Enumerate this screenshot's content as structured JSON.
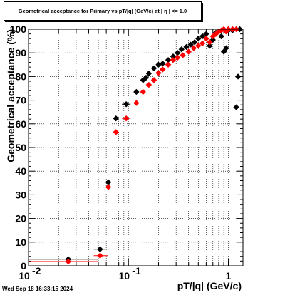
{
  "footer": {
    "timestamp": "Wed Sep 18 16:33:15 2024"
  },
  "chart_data": {
    "type": "scatter",
    "title": "Geometrical acceptance for Primary vs pT/|q| (GeV/c) at |  η | <= 1.0",
    "xlabel": "pT/|q| (GeV/c)",
    "ylabel": "Geometrical acceptance (%)",
    "x_scale": "log",
    "xlim": [
      0.01,
      1.4
    ],
    "ylim": [
      0,
      100
    ],
    "grid": true,
    "x_major_ticks": [
      0.01,
      0.1,
      1
    ],
    "x_tick_labels": {
      "base": "10",
      "exps": [
        "-2",
        "-1"
      ],
      "last": "1"
    },
    "y_ticks": [
      0,
      10,
      20,
      30,
      40,
      50,
      60,
      70,
      80,
      90,
      100
    ],
    "y_tick_labels": [
      "0",
      "10",
      "20",
      "30",
      "40",
      "50",
      "60",
      "70",
      "80",
      "90",
      "100"
    ],
    "series": [
      {
        "color": "#000000",
        "marker": "diamond",
        "points": [
          {
            "x": 0.025,
            "y": 2.8,
            "xlo": 0.0,
            "xhi": 0.05
          },
          {
            "x": 0.052,
            "y": 7.0,
            "xlo": 0.045,
            "xhi": 0.058
          },
          {
            "x": 0.063,
            "y": 35.3
          },
          {
            "x": 0.075,
            "y": 62.3
          },
          {
            "x": 0.095,
            "y": 68.3,
            "xlo": 0.086,
            "xhi": 0.105
          },
          {
            "x": 0.12,
            "y": 73.5
          },
          {
            "x": 0.14,
            "y": 78.5
          },
          {
            "x": 0.15,
            "y": 79.5
          },
          {
            "x": 0.16,
            "y": 81.3
          },
          {
            "x": 0.18,
            "y": 83.5
          },
          {
            "x": 0.2,
            "y": 85.0
          },
          {
            "x": 0.22,
            "y": 85.5
          },
          {
            "x": 0.25,
            "y": 87.0
          },
          {
            "x": 0.28,
            "y": 88.5
          },
          {
            "x": 0.31,
            "y": 90.0
          },
          {
            "x": 0.34,
            "y": 91.5
          },
          {
            "x": 0.38,
            "y": 92.5
          },
          {
            "x": 0.42,
            "y": 93.5
          },
          {
            "x": 0.46,
            "y": 94.5
          },
          {
            "x": 0.5,
            "y": 96.0
          },
          {
            "x": 0.55,
            "y": 97.0
          },
          {
            "x": 0.6,
            "y": 98.0
          },
          {
            "x": 0.65,
            "y": 93.0
          },
          {
            "x": 0.7,
            "y": 95.5
          },
          {
            "x": 0.75,
            "y": 98.5
          },
          {
            "x": 0.8,
            "y": 99.0
          },
          {
            "x": 0.85,
            "y": 97.0
          },
          {
            "x": 0.9,
            "y": 90.5
          },
          {
            "x": 0.95,
            "y": 92.0
          },
          {
            "x": 1.0,
            "y": 99.5
          },
          {
            "x": 1.1,
            "y": 99.5
          },
          {
            "x": 1.2,
            "y": 67.0
          },
          {
            "x": 1.25,
            "y": 80.0
          },
          {
            "x": 1.3,
            "y": 100.0
          }
        ]
      },
      {
        "color": "#ff0000",
        "marker": "diamond",
        "points": [
          {
            "x": 0.025,
            "y": 1.8,
            "xlo": 0.0,
            "xhi": 0.05
          },
          {
            "x": 0.052,
            "y": 4.3,
            "xlo": 0.045,
            "xhi": 0.062
          },
          {
            "x": 0.063,
            "y": 33.3
          },
          {
            "x": 0.075,
            "y": 56.5
          },
          {
            "x": 0.095,
            "y": 62.3,
            "xlo": 0.086,
            "xhi": 0.105
          },
          {
            "x": 0.12,
            "y": 68.8
          },
          {
            "x": 0.14,
            "y": 73.5
          },
          {
            "x": 0.16,
            "y": 76.5
          },
          {
            "x": 0.18,
            "y": 78.5
          },
          {
            "x": 0.2,
            "y": 81.5
          },
          {
            "x": 0.22,
            "y": 83.0
          },
          {
            "x": 0.25,
            "y": 85.0
          },
          {
            "x": 0.28,
            "y": 87.0
          },
          {
            "x": 0.31,
            "y": 88.0
          },
          {
            "x": 0.35,
            "y": 89.0
          },
          {
            "x": 0.4,
            "y": 90.5
          },
          {
            "x": 0.45,
            "y": 92.0
          },
          {
            "x": 0.5,
            "y": 93.0
          },
          {
            "x": 0.55,
            "y": 94.0
          },
          {
            "x": 0.6,
            "y": 96.0
          },
          {
            "x": 0.65,
            "y": 94.5
          },
          {
            "x": 0.7,
            "y": 97.0
          },
          {
            "x": 0.75,
            "y": 98.0
          },
          {
            "x": 0.8,
            "y": 99.0
          },
          {
            "x": 0.85,
            "y": 99.5
          },
          {
            "x": 0.9,
            "y": 100.0
          },
          {
            "x": 0.95,
            "y": 99.0
          },
          {
            "x": 1.0,
            "y": 100.0
          },
          {
            "x": 1.1,
            "y": 100.0
          },
          {
            "x": 1.2,
            "y": 100.0
          }
        ]
      }
    ]
  }
}
